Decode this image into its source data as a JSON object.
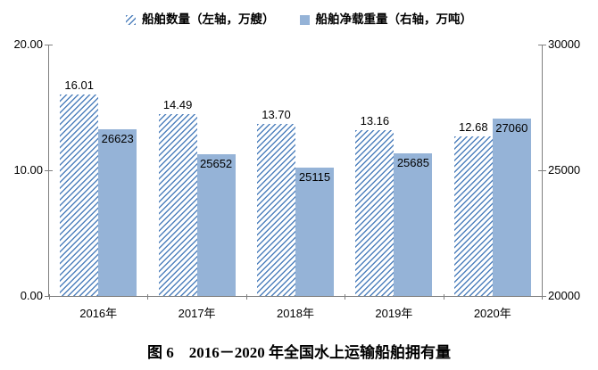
{
  "colors": {
    "hatch_stripe": "#4f81bd",
    "bar_fill": "#95b3d7",
    "axis_line": "#808080",
    "label_text": "#000000"
  },
  "chart_data": {
    "type": "bar",
    "title": "图 6　2016－2020 年全国水上运输船舶拥有量",
    "categories": [
      "2016年",
      "2017年",
      "2018年",
      "2019年",
      "2020年"
    ],
    "series": [
      {
        "name": "船舶数量（左轴，万艘）",
        "axis": "left",
        "style": "hatched",
        "values": [
          16.01,
          14.49,
          13.7,
          13.16,
          12.68
        ],
        "labels": [
          "16.01",
          "14.49",
          "13.70",
          "13.16",
          "12.68"
        ],
        "label_position": "outside-top"
      },
      {
        "name": "船舶净载重量（右轴，万吨）",
        "axis": "right",
        "style": "solid",
        "values": [
          26623,
          25652,
          25115,
          25685,
          27060
        ],
        "labels": [
          "26623",
          "25652",
          "25115",
          "25685",
          "27060"
        ],
        "label_position": "inside-top"
      }
    ],
    "left_axis": {
      "min": 0,
      "max": 20,
      "tick_values": [
        0,
        10,
        20
      ],
      "ticks": [
        "0.00",
        "10.00",
        "20.00"
      ]
    },
    "right_axis": {
      "min": 20000,
      "max": 30000,
      "tick_values": [
        20000,
        25000,
        30000
      ],
      "ticks": [
        "20000",
        "25000",
        "30000"
      ]
    },
    "legend_position": "top",
    "grid": false
  }
}
